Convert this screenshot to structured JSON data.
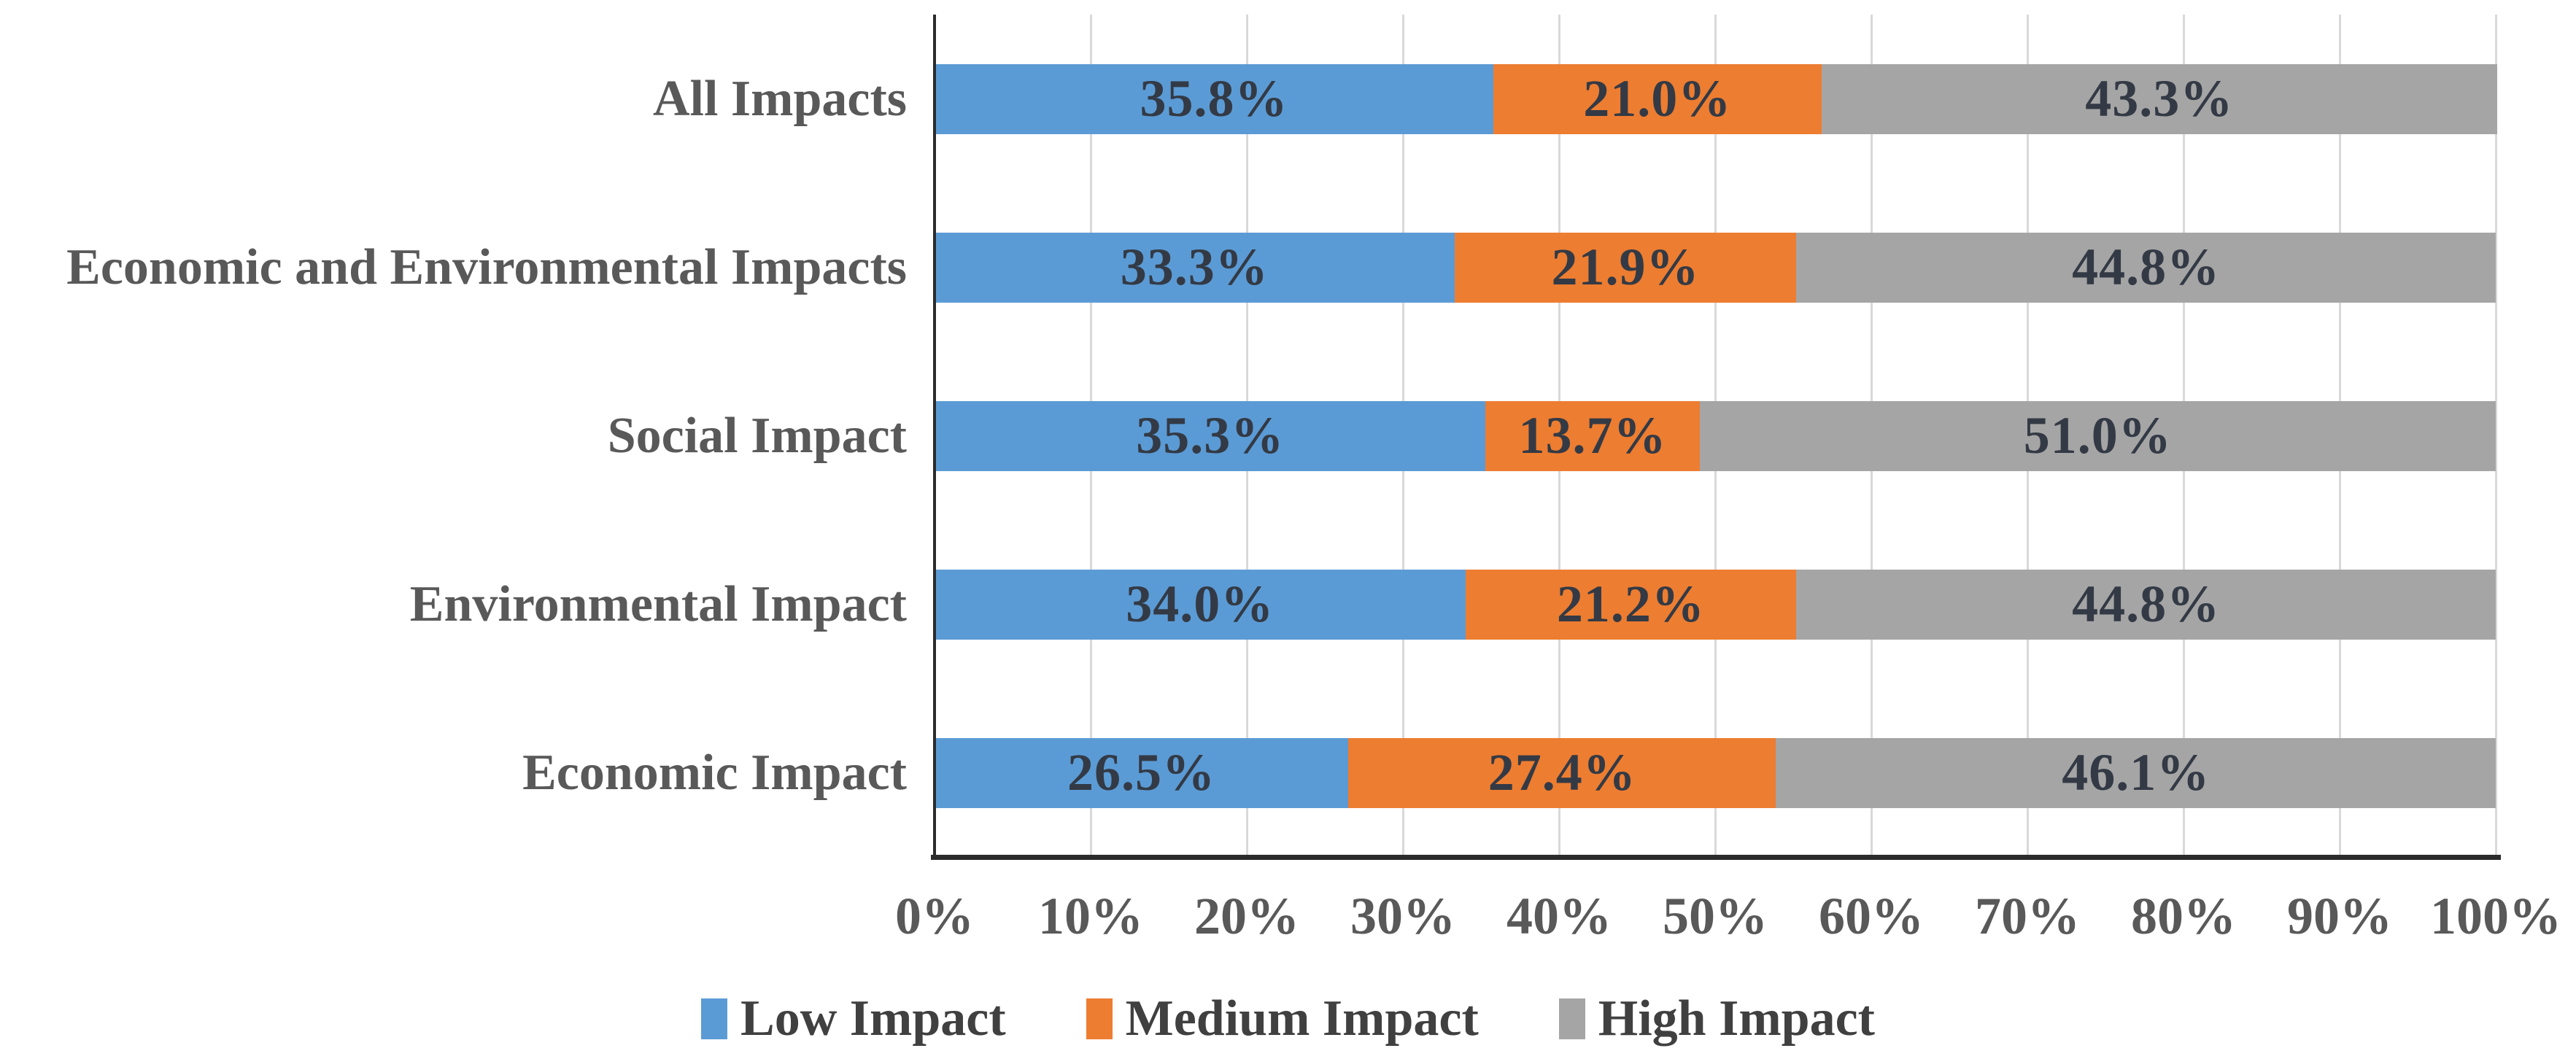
{
  "chart_data": {
    "type": "bar",
    "orientation": "horizontal",
    "stacked": true,
    "categories": [
      "All Impacts",
      "Economic and Environmental Impacts",
      "Social Impact",
      "Environmental Impact",
      "Economic Impact"
    ],
    "series": [
      {
        "name": "Low Impact",
        "color": "#5b9bd5",
        "values": [
          35.8,
          33.3,
          35.3,
          34.0,
          26.5
        ]
      },
      {
        "name": "Medium Impact",
        "color": "#ed7d31",
        "values": [
          21.0,
          21.9,
          13.7,
          21.2,
          27.4
        ]
      },
      {
        "name": "High Impact",
        "color": "#a5a5a5",
        "values": [
          43.3,
          44.8,
          51.0,
          44.8,
          46.1
        ]
      }
    ],
    "data_labels": [
      [
        "35.8%",
        "21.0%",
        "43.3%"
      ],
      [
        "33.3%",
        "21.9%",
        "44.8%"
      ],
      [
        "35.3%",
        "13.7%",
        "51.0%"
      ],
      [
        "34.0%",
        "21.2%",
        "44.8%"
      ],
      [
        "26.5%",
        "27.4%",
        "46.1%"
      ]
    ],
    "x_axis": {
      "min": 0,
      "max": 100,
      "tick_step": 10,
      "ticks": [
        "0%",
        "10%",
        "20%",
        "30%",
        "40%",
        "50%",
        "60%",
        "70%",
        "80%",
        "90%",
        "100%"
      ]
    },
    "legend": {
      "position": "bottom",
      "entries": [
        "Low Impact",
        "Medium Impact",
        "High Impact"
      ]
    },
    "grid": "vertical",
    "colors": {
      "gridline": "#d9d9d9",
      "axis_line": "#2b2b2b",
      "category_text": "#595959",
      "tick_text": "#595959",
      "data_label_text": "#333a45",
      "legend_text": "#404040",
      "background": "#ffffff"
    }
  }
}
